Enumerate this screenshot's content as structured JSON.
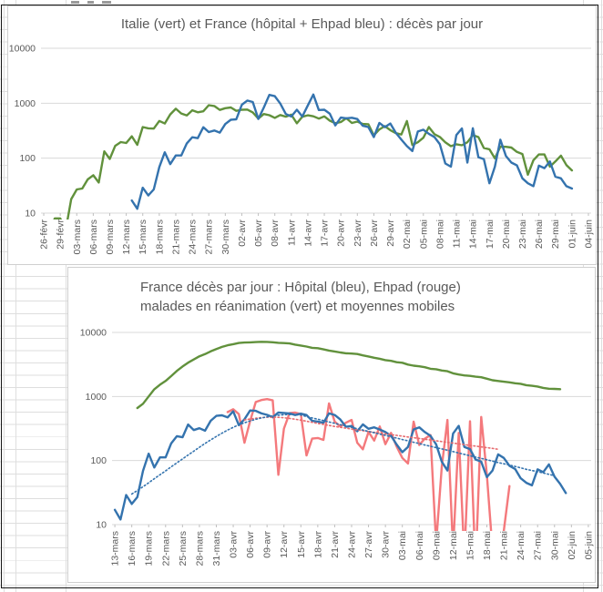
{
  "sheet": {
    "description": "Excel worksheet background with two embedded chart objects inside a black-bordered range"
  },
  "chart_data": [
    {
      "type": "line",
      "title": "Italie (vert) et France (hôpital + Ehpad bleu) : décès par jour",
      "y_axis": {
        "scale": "log",
        "min": 10,
        "max": 10000,
        "ticks": [
          "10",
          "100",
          "1000",
          "10000"
        ],
        "gridlines": true
      },
      "x_axis": {
        "days_per_tick": 3,
        "total_days": 100,
        "tick_labels": [
          "26-févr",
          "29-févr",
          "03-mars",
          "06-mars",
          "09-mars",
          "12-mars",
          "15-mars",
          "18-mars",
          "21-mars",
          "24-mars",
          "27-mars",
          "30-mars",
          "02-avr",
          "05-avr",
          "08-avr",
          "11-avr",
          "14-avr",
          "17-avr",
          "20-avr",
          "23-avr",
          "26-avr",
          "29-avr",
          "02-mai",
          "05-mai",
          "08-mai",
          "11-mai",
          "14-mai",
          "17-mai",
          "20-mai",
          "23-mai",
          "26-mai",
          "29-mai",
          "01-juin",
          "04-juin"
        ]
      },
      "legend": "none",
      "series": [
        {
          "name": "Italie décès par jour (vert)",
          "color": "#61913C",
          "style": "solid",
          "start_day": 0,
          "values": [
            5,
            4,
            8,
            8,
            5,
            18,
            27,
            28,
            41,
            49,
            36,
            133,
            97,
            168,
            196,
            189,
            250,
            175,
            368,
            349,
            345,
            475,
            427,
            627,
            793,
            651,
            601,
            743,
            683,
            712,
            919,
            889,
            756,
            812,
            837,
            727,
            760,
            766,
            681,
            525,
            636,
            604,
            542,
            610,
            570,
            619,
            431,
            566,
            602,
            578,
            525,
            575,
            482,
            433,
            454,
            534,
            437,
            464,
            420,
            415,
            260,
            333,
            382,
            323,
            285,
            269,
            474,
            174,
            195,
            236,
            369,
            274,
            243,
            194,
            165,
            179,
            172,
            195,
            262,
            242,
            153,
            145,
            99,
            162,
            161,
            156,
            130,
            119,
            50,
            92,
            117,
            117,
            70,
            87,
            111,
            75,
            60
          ]
        },
        {
          "name": "France hôpital + Ehpad décès par jour (bleu)",
          "color": "#3473AE",
          "style": "solid",
          "start_day": 16,
          "values": [
            17,
            12,
            29,
            21,
            27,
            69,
            128,
            78,
            112,
            112,
            186,
            240,
            231,
            365,
            299,
            319,
            292,
            418,
            499,
            509,
            940,
            1120,
            1053,
            518,
            833,
            1417,
            1341,
            987,
            635,
            574,
            762,
            574,
            910,
            1438,
            753,
            761,
            642,
            395,
            547,
            531,
            544,
            516,
            389,
            369,
            242,
            437,
            367,
            427,
            289,
            218,
            166,
            135,
            306,
            330,
            278,
            243,
            179,
            80,
            70,
            263,
            348,
            83,
            351,
            104,
            96,
            35,
            70,
            217,
            110,
            83,
            74,
            43,
            35,
            31,
            73,
            66,
            87,
            46,
            43,
            31,
            28
          ]
        }
      ]
    },
    {
      "type": "line",
      "title_lines": [
        "France décès par jour : Hôpital (bleu), Ehpad (rouge)",
        "malades en réanimation (vert) et moyennes mobiles"
      ],
      "y_axis": {
        "scale": "log",
        "min": 10,
        "max": 10000,
        "ticks": [
          "10",
          "100",
          "1000",
          "10000"
        ],
        "gridlines": true
      },
      "x_axis": {
        "days_per_tick": 3,
        "total_days": 85,
        "tick_labels": [
          "13-mars",
          "16-mars",
          "19-mars",
          "22-mars",
          "25-mars",
          "28-mars",
          "31-mars",
          "03-avr",
          "06-avr",
          "09-avr",
          "12-avr",
          "15-avr",
          "18-avr",
          "21-avr",
          "24-avr",
          "27-avr",
          "30-avr",
          "03-mai",
          "06-mai",
          "09-mai",
          "12-mai",
          "15-mai",
          "18-mai",
          "21-mai",
          "24-mai",
          "27-mai",
          "30-mai",
          "02-juin",
          "05-juin"
        ]
      },
      "legend": "none",
      "series": [
        {
          "name": "Malades en réanimation (vert)",
          "color": "#61913C",
          "style": "solid",
          "start_day": 4,
          "values": [
            660,
            771,
            1002,
            1297,
            1525,
            1746,
            2082,
            2516,
            2935,
            3375,
            3787,
            4236,
            4592,
            5056,
            5496,
            5940,
            6305,
            6556,
            6838,
            6948,
            7004,
            7066,
            7148,
            7110,
            7019,
            6883,
            6821,
            6730,
            6457,
            6248,
            6027,
            5744,
            5683,
            5433,
            5218,
            5053,
            4870,
            4725,
            4682,
            4608,
            4387,
            4207,
            4019,
            3878,
            3696,
            3605,
            3430,
            3358,
            3147,
            3028,
            2961,
            2868,
            2712,
            2666,
            2542,
            2476,
            2299,
            2203,
            2132,
            2098,
            2036,
            1998,
            1894,
            1794,
            1745,
            1701,
            1665,
            1609,
            1576,
            1501,
            1470,
            1429,
            1361,
            1323,
            1312,
            1302
          ]
        },
        {
          "name": "Ehpad décès par jour (rouge)",
          "color": "#F4797C",
          "style": "solid",
          "start_day": 20,
          "values": [
            570,
            633,
            532,
            190,
            413,
            820,
            880,
            910,
            870,
            60,
            315,
            550,
            560,
            530,
            120,
            220,
            225,
            210,
            780,
            405,
            340,
            390,
            430,
            190,
            150,
            280,
            205,
            340,
            180,
            270,
            165,
            110,
            90,
            405,
            175,
            220,
            250,
            5,
            80,
            430,
            4,
            270,
            3,
            410,
            2,
            480,
            60,
            4,
            2,
            8,
            40
          ]
        },
        {
          "name": "Hôpital décès par jour (bleu)",
          "color": "#3473AE",
          "style": "solid",
          "start_day": 0,
          "values": [
            17,
            12,
            29,
            21,
            27,
            69,
            128,
            78,
            112,
            112,
            186,
            240,
            231,
            365,
            299,
            319,
            292,
            418,
            499,
            509,
            471,
            588,
            357,
            441,
            605,
            597,
            544,
            516,
            475,
            562,
            554,
            544,
            514,
            541,
            513,
            417,
            405,
            389,
            544,
            515,
            437,
            336,
            347,
            287,
            367,
            313,
            330,
            305,
            278,
            243,
            178,
            135,
            163,
            306,
            330,
            278,
            243,
            179,
            96,
            70,
            263,
            348,
            163,
            151,
            104,
            96,
            55,
            70,
            125,
            110,
            83,
            74,
            53,
            45,
            41,
            73,
            66,
            87,
            56,
            43,
            31
          ]
        },
        {
          "name": "Moyenne mobile Ehpad (rouge pointillé)",
          "color": "#E76A6E",
          "style": "dotted",
          "start_day": 23,
          "values": [
            430,
            445,
            458,
            468,
            474,
            476,
            473,
            466,
            455,
            442,
            427,
            411,
            395,
            380,
            366,
            353,
            341,
            330,
            320,
            310,
            301,
            292,
            284,
            276,
            268,
            261,
            254,
            247,
            240,
            233,
            227,
            221,
            215,
            209,
            203,
            198,
            192,
            187,
            182,
            177,
            172,
            168,
            163,
            159,
            155,
            150
          ]
        },
        {
          "name": "Moyenne mobile hôpital (bleu pointillé)",
          "color": "#3473AE",
          "style": "dotted",
          "start_day": 3,
          "values": [
            30,
            34,
            39,
            45,
            52,
            60,
            69,
            80,
            92,
            106,
            122,
            140,
            161,
            185,
            210,
            238,
            268,
            299,
            330,
            360,
            389,
            415,
            440,
            462,
            481,
            497,
            510,
            520,
            522,
            520,
            515,
            486,
            463,
            441,
            420,
            400,
            381,
            363,
            346,
            330,
            314,
            299,
            285,
            272,
            259,
            247,
            235,
            224,
            213,
            203,
            193,
            184,
            175,
            167,
            159,
            152,
            145,
            138,
            131,
            125,
            119,
            113,
            108,
            103,
            98,
            93,
            89,
            85,
            81,
            77,
            73,
            70,
            67,
            64,
            61,
            58
          ]
        }
      ]
    }
  ]
}
